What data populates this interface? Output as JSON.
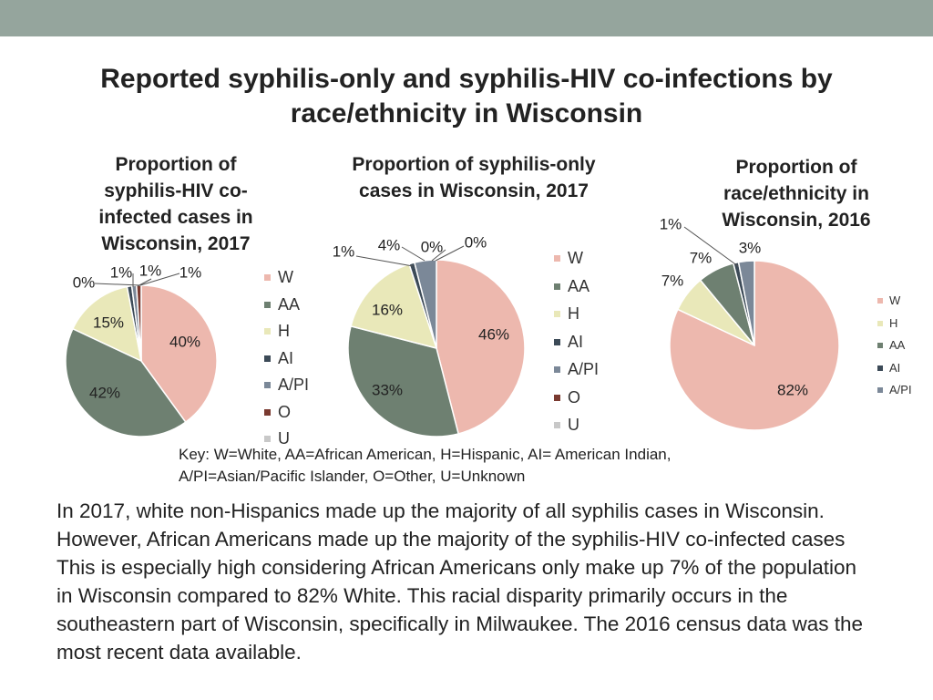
{
  "header": {
    "title": "Reported syphilis-only and syphilis-HIV co-infections by race/ethnicity in Wisconsin"
  },
  "colors": {
    "W": "#edb8ae",
    "AA": "#6e8071",
    "H": "#e9e8b9",
    "AI": "#3c4a57",
    "A/PI": "#7b8898",
    "O": "#7a3a30",
    "U": "#c8c8c8",
    "top_bar": "#95a59d"
  },
  "chart_data": [
    {
      "type": "pie",
      "title": "Proportion of syphilis-HIV co-infected cases in Wisconsin, 2017",
      "categories": [
        "W",
        "AA",
        "H",
        "AI",
        "A/PI",
        "O",
        "U"
      ],
      "values": [
        40,
        42,
        15,
        1,
        1,
        1,
        0
      ],
      "data_labels": [
        "40%",
        "42%",
        "15%",
        "1%",
        "1%",
        "1%",
        "0%"
      ],
      "legend": [
        "W",
        "AA",
        "H",
        "AI",
        "A/PI",
        "O",
        "U"
      ],
      "legend_position": "right"
    },
    {
      "type": "pie",
      "title": "Proportion of syphilis-only cases in Wisconsin, 2017",
      "categories": [
        "W",
        "AA",
        "H",
        "AI",
        "A/PI",
        "O",
        "U"
      ],
      "values": [
        46,
        33,
        16,
        1,
        4,
        0,
        0
      ],
      "data_labels": [
        "46%",
        "33%",
        "16%",
        "1%",
        "4%",
        "0%",
        "0%"
      ],
      "legend": [
        "W",
        "AA",
        "H",
        "AI",
        "A/PI",
        "O",
        "U"
      ],
      "legend_position": "right"
    },
    {
      "type": "pie",
      "title": "Proportion of race/ethnicity in Wisconsin, 2016",
      "categories": [
        "W",
        "H",
        "AA",
        "AI",
        "A/PI"
      ],
      "values": [
        82,
        7,
        7,
        1,
        3
      ],
      "data_labels": [
        "82%",
        "7%",
        "7%",
        "1%",
        "3%"
      ],
      "legend": [
        "W",
        "H",
        "AA",
        "AI",
        "A/PI"
      ],
      "legend_position": "right"
    }
  ],
  "key": {
    "line1": "Key: W=White, AA=African American, H=Hispanic, AI= American Indian,",
    "line2": "A/PI=Asian/Pacific Islander, O=Other, U=Unknown"
  },
  "summary": "In 2017, white non-Hispanics made up the majority of all syphilis cases in Wisconsin. However, African Americans made up the majority of the syphilis-HIV co-infected cases This is especially high considering African Americans only make up 7% of the population in Wisconsin compared to 82% White. This racial disparity primarily occurs in the southeastern part of Wisconsin, specifically in Milwaukee. The 2016 census data was the most recent data available."
}
